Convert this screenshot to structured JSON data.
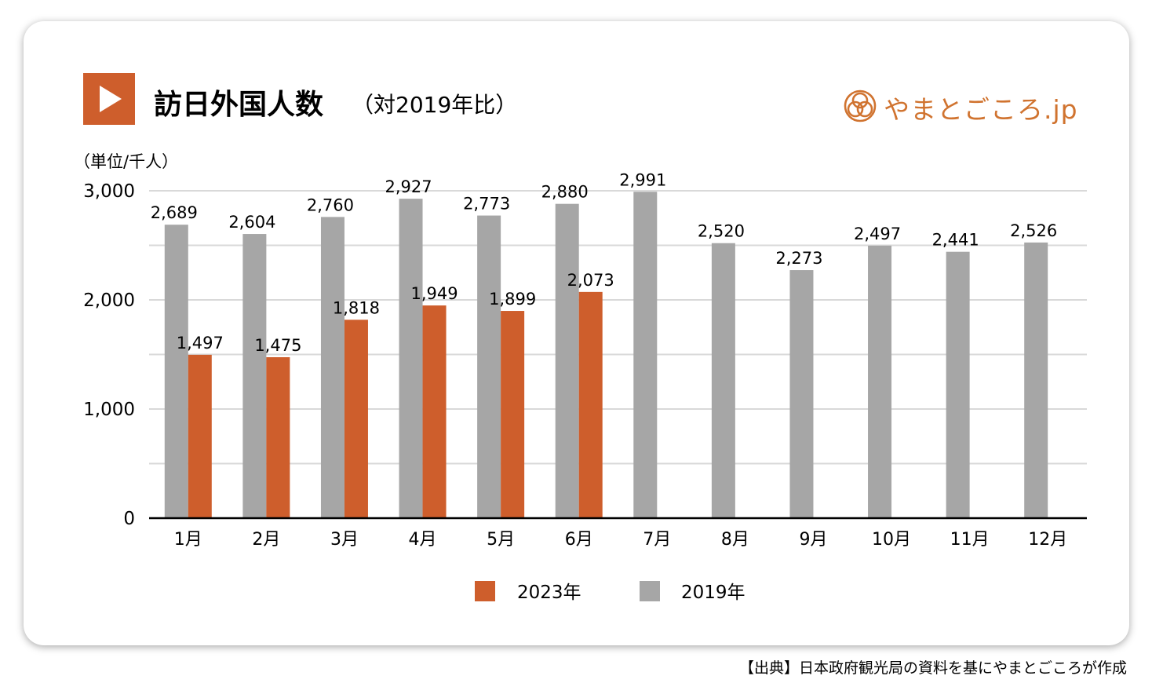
{
  "title": "訪日外国人数",
  "subtitle": "（対2019年比）",
  "unit_label": "（単位/千人）",
  "brand": {
    "logo_text": "やまとごころ.jp",
    "logo_color": "#d0732f"
  },
  "source_note": "【出典】日本政府観光局の資料を基にやまとごころが作成",
  "colors": {
    "series_2023": "#ce5e2c",
    "series_2019": "#a6a6a6",
    "accent": "#ce5e2c",
    "grid": "#d9d9d9"
  },
  "chart_data": {
    "type": "bar",
    "categories": [
      "1月",
      "2月",
      "3月",
      "4月",
      "5月",
      "6月",
      "7月",
      "8月",
      "9月",
      "10月",
      "11月",
      "12月"
    ],
    "series": [
      {
        "name": "2019年",
        "values": [
          2689,
          2604,
          2760,
          2927,
          2773,
          2880,
          2991,
          2520,
          2273,
          2497,
          2441,
          2526
        ],
        "labels": [
          "2,689",
          "2,604",
          "2,760",
          "2,927",
          "2,773",
          "2,880",
          "2,991",
          "2,520",
          "2,273",
          "2,497",
          "2,441",
          "2,526"
        ]
      },
      {
        "name": "2023年",
        "values": [
          1497,
          1475,
          1818,
          1949,
          1899,
          2073,
          null,
          null,
          null,
          null,
          null,
          null
        ],
        "labels": [
          "1,497",
          "1,475",
          "1,818",
          "1,949",
          "1,899",
          "2,073",
          "",
          "",
          "",
          "",
          "",
          ""
        ]
      }
    ],
    "legend_order": [
      "2023年",
      "2019年"
    ],
    "ylim": [
      0,
      3000
    ],
    "yticks": [
      0,
      1000,
      2000,
      3000
    ],
    "ytick_labels": [
      "0",
      "1,000",
      "2,000",
      "3,000"
    ],
    "ylabel": "（単位/千人）",
    "grid": true,
    "legend_position": "bottom"
  }
}
